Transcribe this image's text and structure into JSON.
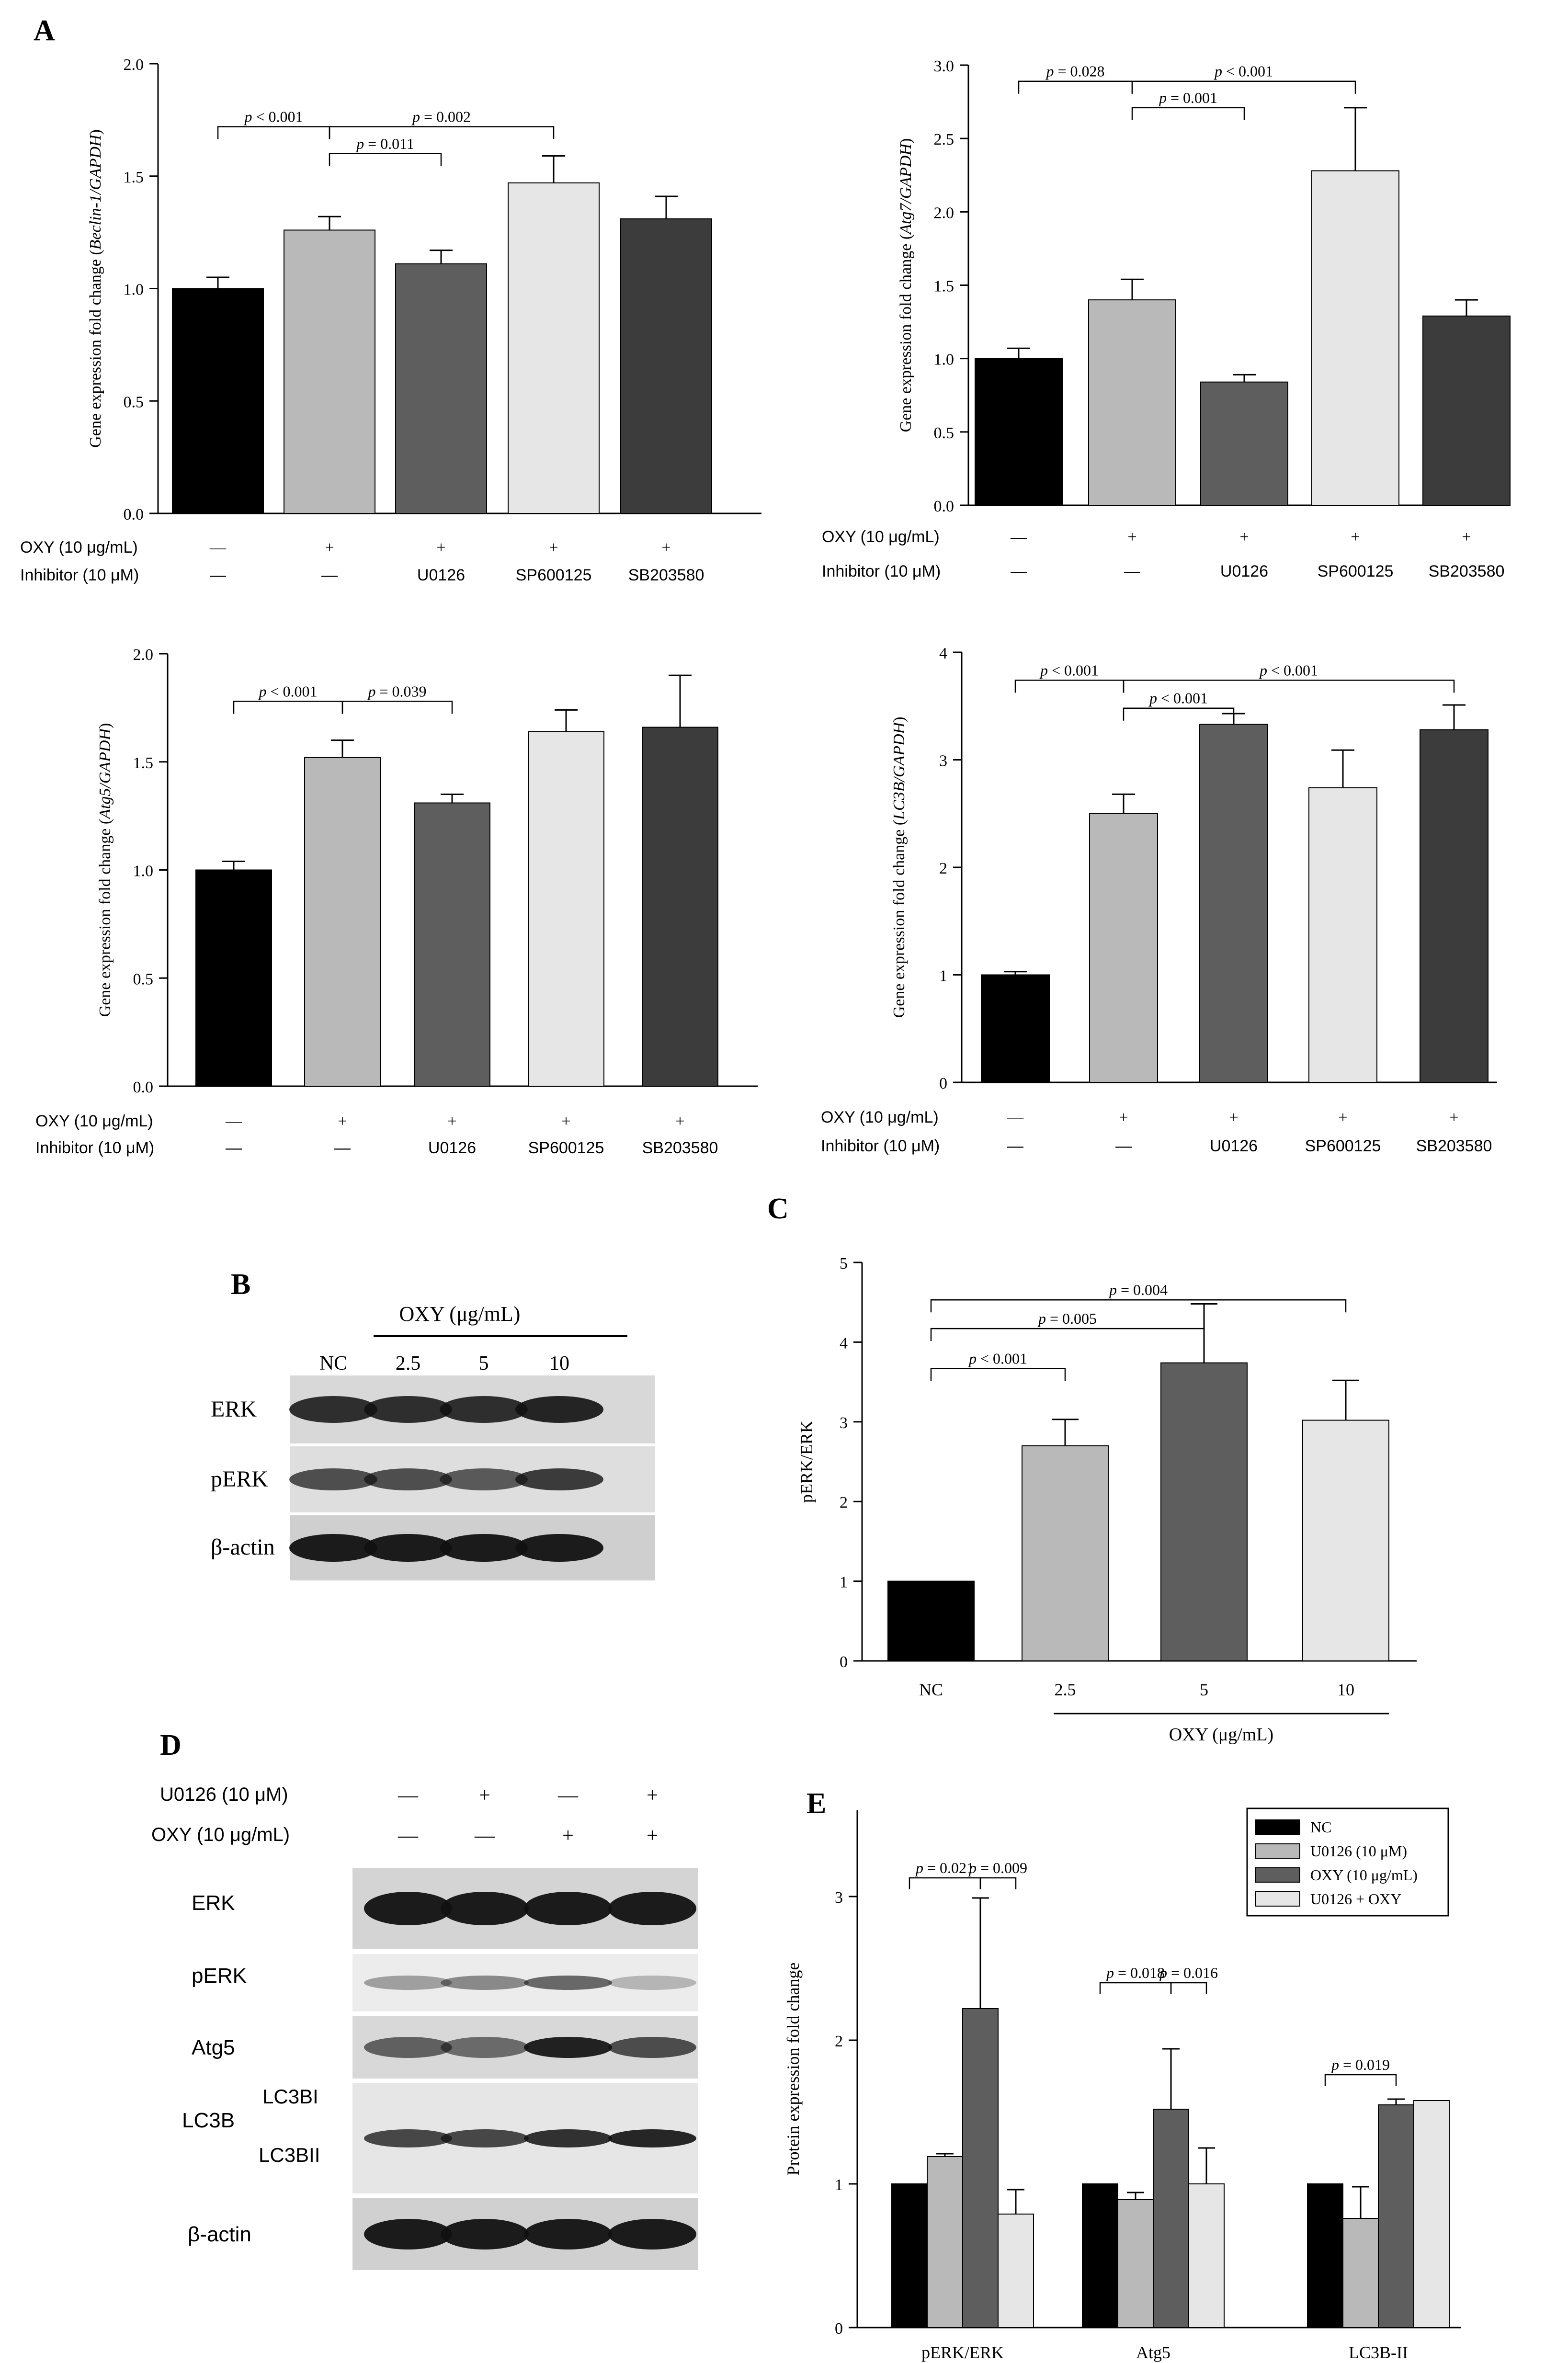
{
  "panel_letters": [
    "A",
    "B",
    "C",
    "D",
    "E"
  ],
  "conditions": {
    "oxy_label": "OXY (10 μg/mL)",
    "inhibitor_label": "Inhibitor (10 μM)",
    "oxy_signs": [
      "—",
      "+",
      "+",
      "+",
      "+"
    ],
    "inhibitors": [
      "—",
      "—",
      "U0126",
      "SP600125",
      "SB203580"
    ]
  },
  "colors": {
    "black": "#000000",
    "light_gray": "#b9b9b9",
    "mid_gray": "#5e5e5e",
    "pale_gray": "#e6e6e6",
    "dark_gray": "#3c3c3c"
  },
  "chart_data": [
    {
      "id": "A1",
      "type": "bar",
      "ylabel_pre": "Gene expression fold change (",
      "ylabel_gene": "Beclin-1/GAPDH",
      "ylabel_post": ")",
      "ylim": [
        0,
        2.0
      ],
      "yticks": [
        "0.0",
        "0.5",
        "1.0",
        "1.5",
        "2.0"
      ],
      "values": [
        1.0,
        1.26,
        1.11,
        1.47,
        1.31
      ],
      "errors": [
        0.05,
        0.06,
        0.06,
        0.12,
        0.1
      ],
      "annotations": [
        {
          "text": "p < 0.001",
          "from": 0,
          "to": 1,
          "level": 1.72
        },
        {
          "text": "p = 0.002",
          "from": 1,
          "to": 3,
          "level": 1.72
        },
        {
          "text": "p = 0.011",
          "from": 1,
          "to": 2,
          "level": 1.6
        }
      ]
    },
    {
      "id": "A2",
      "type": "bar",
      "ylabel_pre": "Gene expression fold change (",
      "ylabel_gene": "Atg7/GAPDH",
      "ylabel_post": ")",
      "ylim": [
        0,
        3.0
      ],
      "yticks": [
        "0.0",
        "0.5",
        "1.0",
        "1.5",
        "2.0",
        "2.5",
        "3.0"
      ],
      "values": [
        1.0,
        1.4,
        0.84,
        2.28,
        1.29
      ],
      "errors": [
        0.07,
        0.14,
        0.05,
        0.43,
        0.11
      ],
      "annotations": [
        {
          "text": "p = 0.028",
          "from": 0,
          "to": 1,
          "level": 2.89
        },
        {
          "text": "p < 0.001",
          "from": 1,
          "to": 3,
          "level": 2.89
        },
        {
          "text": "p = 0.001",
          "from": 1,
          "to": 2,
          "level": 2.71
        }
      ]
    },
    {
      "id": "A3",
      "type": "bar",
      "ylabel_pre": "Gene expression fold change (",
      "ylabel_gene": "Atg5/GAPDH",
      "ylabel_post": ")",
      "ylim": [
        0,
        2.0
      ],
      "yticks": [
        "0.0",
        "0.5",
        "1.0",
        "1.5",
        "2.0"
      ],
      "values": [
        1.0,
        1.52,
        1.31,
        1.64,
        1.66
      ],
      "errors": [
        0.04,
        0.08,
        0.04,
        0.1,
        0.24
      ],
      "annotations": [
        {
          "text": "p < 0.001",
          "from": 0,
          "to": 1,
          "level": 1.78
        },
        {
          "text": "p = 0.039",
          "from": 1,
          "to": 2,
          "level": 1.78
        }
      ]
    },
    {
      "id": "A4",
      "type": "bar",
      "ylabel_pre": "Gene expression fold change (",
      "ylabel_gene": "LC3B/GAPDH",
      "ylabel_post": ")",
      "ylim": [
        0,
        4
      ],
      "yticks": [
        "0",
        "1",
        "2",
        "3",
        "4"
      ],
      "values": [
        1.0,
        2.5,
        3.33,
        2.74,
        3.28
      ],
      "errors": [
        0.03,
        0.18,
        0.1,
        0.35,
        0.23
      ],
      "annotations": [
        {
          "text": "p < 0.001",
          "from": 0,
          "to": 1,
          "level": 3.74
        },
        {
          "text": "p < 0.001",
          "from": 1,
          "to": 4,
          "level": 3.74
        },
        {
          "text": "p < 0.001",
          "from": 1,
          "to": 2,
          "level": 3.48
        }
      ]
    },
    {
      "id": "C",
      "type": "bar",
      "ylabel": "pERK/ERK",
      "ylim": [
        0,
        5
      ],
      "yticks": [
        "0",
        "1",
        "2",
        "3",
        "4",
        "5"
      ],
      "categories": [
        "NC",
        "2.5",
        "5",
        "10"
      ],
      "xlabel": "OXY (μg/mL)",
      "values": [
        1.0,
        2.7,
        3.74,
        3.02
      ],
      "errors": [
        0.0,
        0.33,
        0.74,
        0.5
      ],
      "annotations": [
        {
          "text": "p = 0.004",
          "from": 0,
          "to": 3,
          "level": 4.53
        },
        {
          "text": "p = 0.005",
          "from": 0,
          "to": 2,
          "level": 4.17
        },
        {
          "text": "p < 0.001",
          "from": 0,
          "to": 1,
          "level": 3.67
        }
      ]
    },
    {
      "id": "E",
      "type": "bar",
      "ylabel": "Protein expression fold change",
      "ylim": [
        0,
        3.6
      ],
      "yticks": [
        "0",
        "1",
        "2",
        "3"
      ],
      "categories": [
        "pERK/ERK",
        "Atg5",
        "LC3B-II"
      ],
      "series": [
        {
          "name": "NC",
          "values": [
            1.0,
            1.0,
            1.0
          ],
          "errors": [
            0,
            0,
            0
          ]
        },
        {
          "name": "U0126 (10 μM)",
          "values": [
            1.19,
            0.89,
            0.76
          ],
          "errors": [
            0.02,
            0.05,
            0.22
          ]
        },
        {
          "name": "OXY (10 μg/mL)",
          "values": [
            2.22,
            1.52,
            1.55
          ],
          "errors": [
            0.77,
            0.42,
            0.04
          ]
        },
        {
          "name": "U0126 + OXY",
          "values": [
            0.79,
            1.0,
            1.58
          ],
          "errors": [
            0.17,
            0.25,
            0
          ]
        }
      ],
      "annotations": [
        {
          "text": "p = 0.021",
          "from": [
            0,
            0
          ],
          "to": [
            0,
            2
          ],
          "level": 3.13
        },
        {
          "text": "p = 0.009",
          "from": [
            0,
            2
          ],
          "to": [
            0,
            3
          ],
          "level": 3.13
        },
        {
          "text": "p = 0.018",
          "from": [
            1,
            0
          ],
          "to": [
            1,
            2
          ],
          "level": 2.4
        },
        {
          "text": "p = 0.016",
          "from": [
            1,
            2
          ],
          "to": [
            1,
            3
          ],
          "level": 2.4
        },
        {
          "text": "p = 0.019",
          "from": [
            2,
            0
          ],
          "to": [
            2,
            2
          ],
          "level": 1.76
        }
      ]
    }
  ],
  "blot_B": {
    "header": "OXY (μg/mL)",
    "lanes": [
      "NC",
      "2.5",
      "5",
      "10"
    ],
    "rows": [
      "ERK",
      "pERK",
      "β-actin"
    ]
  },
  "blot_D": {
    "u0126_label": "U0126 (10 μM)",
    "oxy_label": "OXY (10 μg/mL)",
    "u0126_signs": [
      "—",
      "+",
      "—",
      "+"
    ],
    "oxy_signs": [
      "—",
      "—",
      "+",
      "+"
    ],
    "rows": [
      "ERK",
      "pERK",
      "Atg5"
    ],
    "lc3b_group": "LC3B",
    "lc3b_rows": [
      "LC3BI",
      "LC3BII"
    ],
    "actin": "β-actin"
  }
}
